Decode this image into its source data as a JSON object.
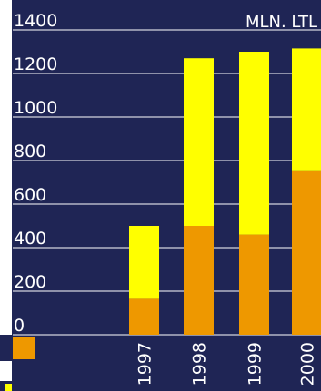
{
  "colors": {
    "background": "#1f2555",
    "series_lower": "#ee9800",
    "series_upper": "#ffff00",
    "gridline": "#ffffff",
    "text": "#ffffff"
  },
  "chart_data": {
    "type": "bar",
    "stacked": true,
    "unit_label": "MLN. LTL",
    "categories": [
      "1997",
      "1998",
      "1999",
      "2000"
    ],
    "series": [
      {
        "color": "#ee9800",
        "values": [
          165,
          500,
          460,
          755
        ]
      },
      {
        "color": "#ffff00",
        "values": [
          335,
          770,
          840,
          560
        ]
      }
    ],
    "yticks": [
      0,
      200,
      400,
      600,
      800,
      1000,
      1200,
      1400
    ],
    "ylim": [
      0,
      1400
    ],
    "grid": true
  }
}
